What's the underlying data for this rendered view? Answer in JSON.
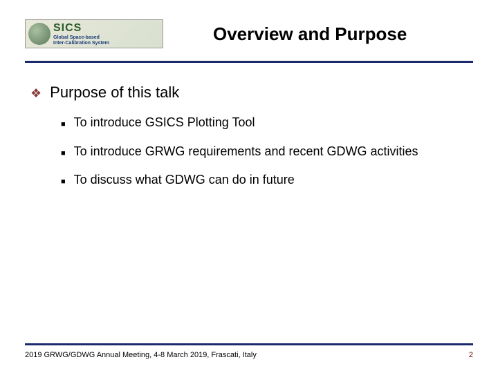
{
  "logo": {
    "top_text": "SICS",
    "sub_line1": "Global Space-based",
    "sub_line2": "Inter-Calibration System"
  },
  "title": "Overview and Purpose",
  "main_bullet": "Purpose of this talk",
  "sub_bullets": {
    "item0": "To introduce GSICS Plotting Tool",
    "item1": "To introduce GRWG requirements and recent GDWG activities",
    "item2": "To discuss what GDWG can do in future"
  },
  "footer_text": "2019 GRWG/GDWG Annual Meeting, 4-8 March 2019, Frascati, Italy",
  "page_number": "2",
  "colors": {
    "accent_line": "#1a2a6a",
    "diamond": "#8a3a3a",
    "page_num": "#6a0a0a"
  }
}
